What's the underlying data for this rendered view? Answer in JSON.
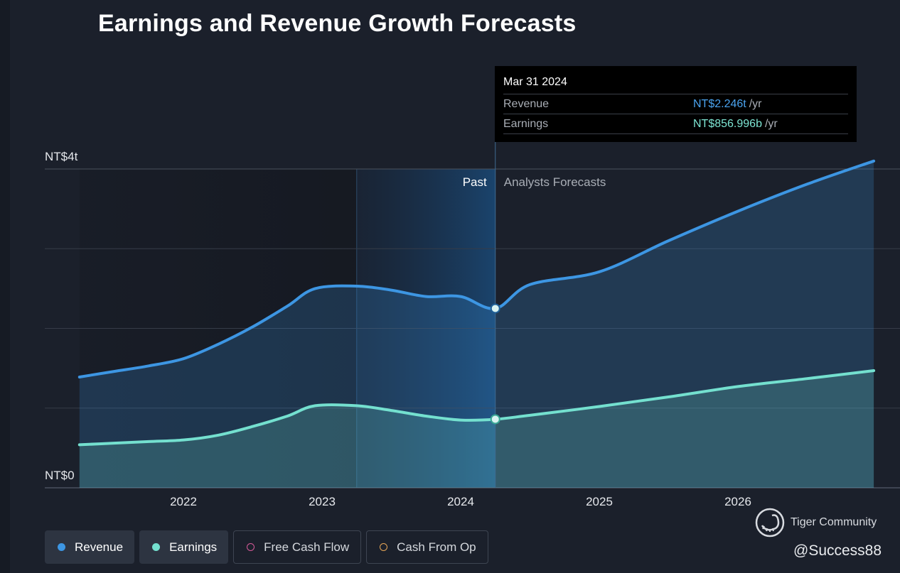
{
  "title": "Earnings and Revenue Growth Forecasts",
  "tooltip": {
    "date": "Mar 31 2024",
    "rows": [
      {
        "label": "Revenue",
        "value": "NT$2.246t",
        "unit": "/yr"
      },
      {
        "label": "Earnings",
        "value": "NT$856.996b",
        "unit": "/yr"
      }
    ]
  },
  "legend": [
    {
      "label": "Revenue",
      "active": true,
      "color": "#3d96e3"
    },
    {
      "label": "Earnings",
      "active": true,
      "color": "#74e0cf"
    },
    {
      "label": "Free Cash Flow",
      "active": false,
      "color": "#d65a99"
    },
    {
      "label": "Cash From Op",
      "active": false,
      "color": "#e5a557"
    }
  ],
  "watermark": {
    "brand": "Tiger Community",
    "handle": "@Success88"
  },
  "chart_data": {
    "type": "area",
    "title": "Earnings and Revenue Growth Forecasts",
    "x_ticks": [
      "2022",
      "2023",
      "2024",
      "2025",
      "2026"
    ],
    "y_ticks": [
      "NT$0",
      "NT$4t"
    ],
    "ylim": [
      0,
      4
    ],
    "y_unit": "NT$ trillion",
    "grid": true,
    "past_label": "Past",
    "forecast_label": "Analysts Forecasts",
    "cursor_x": 2024.25,
    "series": [
      {
        "name": "Revenue",
        "color": "#3d96e3",
        "x": [
          2021.25,
          2021.5,
          2021.75,
          2022.0,
          2022.25,
          2022.5,
          2022.75,
          2022.95,
          2023.25,
          2023.5,
          2023.75,
          2024.0,
          2024.25,
          2024.5,
          2025.0,
          2025.5,
          2026.0,
          2026.5,
          2026.98
        ],
        "values": [
          1.39,
          1.46,
          1.53,
          1.62,
          1.8,
          2.02,
          2.28,
          2.5,
          2.53,
          2.48,
          2.4,
          2.4,
          2.25,
          2.55,
          2.71,
          3.1,
          3.47,
          3.81,
          4.1
        ]
      },
      {
        "name": "Earnings",
        "color": "#74e0cf",
        "x": [
          2021.25,
          2021.5,
          2021.75,
          2022.0,
          2022.25,
          2022.5,
          2022.75,
          2022.95,
          2023.25,
          2023.5,
          2023.75,
          2024.0,
          2024.25,
          2024.5,
          2025.0,
          2025.5,
          2026.0,
          2026.5,
          2026.98
        ],
        "values": [
          0.54,
          0.56,
          0.58,
          0.6,
          0.66,
          0.77,
          0.9,
          1.03,
          1.03,
          0.97,
          0.9,
          0.85,
          0.86,
          0.91,
          1.02,
          1.14,
          1.27,
          1.37,
          1.47
        ]
      }
    ]
  }
}
